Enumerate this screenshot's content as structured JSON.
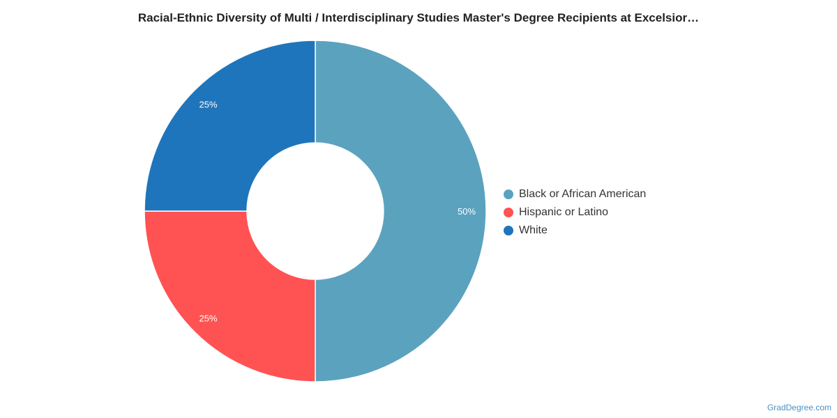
{
  "chart_data": {
    "type": "pie",
    "donut": true,
    "title": "Racial-Ethnic Diversity of Multi / Interdisciplinary Studies Master's Degree Recipients at Excelsior…",
    "categories": [
      "Black or African American",
      "Hispanic or Latino",
      "White"
    ],
    "values": [
      50,
      25,
      25
    ],
    "value_labels": [
      "50%",
      "25%",
      "25%"
    ],
    "colors": [
      "#5ba2bf",
      "#ff5252",
      "#1f75bb"
    ],
    "legend_position": "right",
    "start_angle": "top, clockwise"
  },
  "watermark": "GradDegree.com"
}
